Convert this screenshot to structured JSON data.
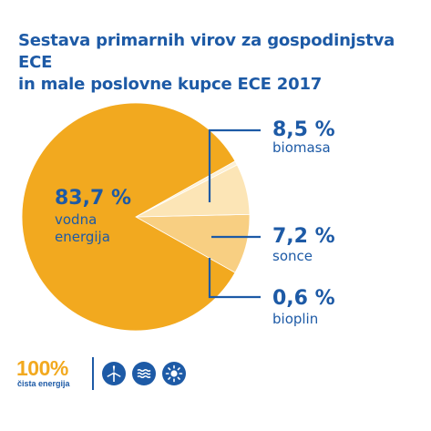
{
  "title_line1": "Sestava primarnih virov za gospodinjstva ECE",
  "title_line2": "in male poslovne kupce ECE 2017",
  "chart_data": {
    "type": "pie",
    "title": "Sestava primarnih virov za gospodinjstva ECE in male poslovne kupce ECE 2017",
    "slices": [
      {
        "value": 83.7,
        "pct_label": "83,7 %",
        "label_line1": "vodna",
        "label_line2": "energija",
        "color": "#f2a91f"
      },
      {
        "value": 8.5,
        "pct_label": "8,5 %",
        "label_line1": "biomasa",
        "label_line2": "",
        "color": "#f8cf82"
      },
      {
        "value": 7.2,
        "pct_label": "7,2 %",
        "label_line1": "sonce",
        "label_line2": "",
        "color": "#fce5b6"
      },
      {
        "value": 0.6,
        "pct_label": "0,6 %",
        "label_line1": "bioplin",
        "label_line2": "",
        "color": "#fdf0d4"
      }
    ]
  },
  "colors": {
    "brand_blue": "#1d5aa6",
    "orange": "#f2a91f"
  },
  "footer": {
    "brand_pct": "100%",
    "brand_sub": "čista energija",
    "icons": [
      "wind-turbine-icon",
      "water-waves-icon",
      "sun-icon"
    ]
  }
}
